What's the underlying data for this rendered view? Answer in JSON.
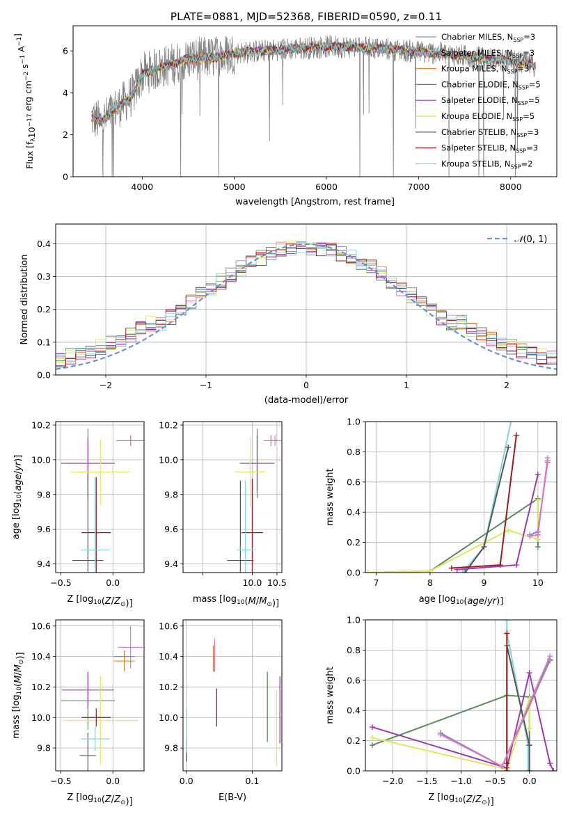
{
  "figure_title": "PLATE=0881, MJD=52368, FIBERID=0590, z=0.11",
  "series_colors": {
    "Chabrier MILES": "#6a8fd8",
    "Salpeter MILES": "#e377c2",
    "Kroupa MILES": "#e3832f",
    "Chabrier ELODIE": "#5b8a5b",
    "Salpeter ELODIE": "#9c37b5",
    "Kroupa ELODIE": "#d7ea5a",
    "Chabrier STELIB": "#555555",
    "Salpeter STELIB": "#a01818",
    "Kroupa STELIB": "#7fd6d6"
  },
  "chart_data": [
    {
      "type": "line",
      "title": "PLATE=0881, MJD=52368, FIBERID=0590, z=0.11",
      "xlabel": "wavelength [Angstrom, rest frame]",
      "ylabel": "Flux [f_λ10^-17 erg cm^-2 s^-1 A^-1]",
      "xlim": [
        3250,
        8500
      ],
      "ylim": [
        0,
        7.2
      ],
      "xticks": [
        4000,
        5000,
        6000,
        7000,
        8000
      ],
      "yticks": [
        0,
        2,
        4,
        6
      ],
      "grid": false,
      "legend": "top-right",
      "data_color": "#808080",
      "spectrum_anchor_x": [
        3450,
        3550,
        3700,
        3900,
        4000,
        4200,
        4500,
        4800,
        5000,
        5300,
        5600,
        6000,
        6300,
        6600,
        6900,
        7200,
        7500,
        7800,
        8000,
        8270
      ],
      "spectrum_anchor_y": [
        2.8,
        2.6,
        3.2,
        3.9,
        4.9,
        5.2,
        5.6,
        5.7,
        5.9,
        6.0,
        6.1,
        6.2,
        6.2,
        6.1,
        6.0,
        5.9,
        5.75,
        5.6,
        5.5,
        5.3
      ],
      "series": [
        {
          "name": "Chabrier MILES, N_SSP=3",
          "label_main": "Chabrier MILES, N",
          "label_sub": "SSP",
          "label_tail": "=3"
        },
        {
          "name": "Salpeter MILES, N_SSP=3",
          "label_main": "Salpeter MILES, N",
          "label_sub": "SSP",
          "label_tail": "=3"
        },
        {
          "name": "Kroupa MILES, N_SSP=3",
          "label_main": "Kroupa MILES, N",
          "label_sub": "SSP",
          "label_tail": "=3"
        },
        {
          "name": "Chabrier ELODIE, N_SSP=5",
          "label_main": "Chabrier ELODIE, N",
          "label_sub": "SSP",
          "label_tail": "=5"
        },
        {
          "name": "Salpeter ELODIE, N_SSP=5",
          "label_main": "Salpeter ELODIE, N",
          "label_sub": "SSP",
          "label_tail": "=5"
        },
        {
          "name": "Kroupa ELODIE, N_SSP=5",
          "label_main": "Kroupa ELODIE, N",
          "label_sub": "SSP",
          "label_tail": "=5"
        },
        {
          "name": "Chabrier STELIB, N_SSP=3",
          "label_main": "Chabrier STELIB, N",
          "label_sub": "SSP",
          "label_tail": "=3"
        },
        {
          "name": "Salpeter STELIB, N_SSP=3",
          "label_main": "Salpeter STELIB, N",
          "label_sub": "SSP",
          "label_tail": "=3"
        },
        {
          "name": "Kroupa STELIB, N_SSP=2",
          "label_main": "Kroupa STELIB, N",
          "label_sub": "SSP",
          "label_tail": "=2"
        }
      ]
    },
    {
      "type": "line",
      "xlabel": "(data-model)/error",
      "ylabel": "Normed distribution",
      "xlim": [
        -2.5,
        2.5
      ],
      "ylim": [
        0,
        0.46
      ],
      "xticks": [
        -2,
        -1,
        0,
        1,
        2
      ],
      "xtick_labels": [
        "−2",
        "−1",
        "0",
        "1",
        "2"
      ],
      "yticks": [
        0,
        0.1,
        0.2,
        0.3,
        0.4
      ],
      "ytick_labels": [
        "0.0",
        "0.1",
        "0.2",
        "0.3",
        "0.4"
      ],
      "grid": true,
      "legend": "top-right",
      "reference_curve": {
        "name": "N(0,1)",
        "mean": 0,
        "sigma": 1,
        "style": "dashed",
        "color": "#6a8fd8"
      },
      "hist_bin_width": 0.1,
      "hist_range": [
        -2.5,
        2.5
      ]
    },
    {
      "type": "scatter",
      "xlabel": "Z [log10(Z/Z⊙)]",
      "ylabel": "age [log10(age/yr)]",
      "xlim": [
        -0.55,
        0.3
      ],
      "ylim": [
        9.35,
        10.22
      ],
      "xticks": [
        -0.5,
        0.0
      ],
      "xtick_labels": [
        "−0.5",
        "0.0"
      ],
      "yticks": [
        9.4,
        9.6,
        9.8,
        10.0,
        10.2
      ],
      "ytick_labels": [
        "9.4",
        "9.6",
        "9.8",
        "10.0",
        "10.2"
      ],
      "grid": true,
      "errorbars": [
        {
          "series": "Chabrier MILES",
          "x": 0.17,
          "xerr": 0.13,
          "y": 10.11,
          "yerr": 0.02
        },
        {
          "series": "Salpeter MILES",
          "x": 0.17,
          "xerr": 0.14,
          "y": 10.11,
          "yerr": 0.03
        },
        {
          "series": "Kroupa MILES",
          "x": 0.17,
          "xerr": 0.13,
          "y": 10.11,
          "yerr": 0.03
        },
        {
          "series": "Chabrier ELODIE",
          "x": -0.24,
          "xerr": 0.24,
          "y": 9.98,
          "yerr": 0.2
        },
        {
          "series": "Salpeter ELODIE",
          "x": -0.24,
          "xerr": 0.26,
          "y": 9.98,
          "yerr": 0.15
        },
        {
          "series": "Kroupa ELODIE",
          "x": -0.12,
          "xerr": 0.28,
          "y": 9.93,
          "yerr": 0.19
        },
        {
          "series": "Chabrier STELIB",
          "x": -0.24,
          "xerr": 0.15,
          "y": 9.42,
          "yerr": 0.49
        },
        {
          "series": "Salpeter STELIB",
          "x": -0.16,
          "xerr": 0.14,
          "y": 9.58,
          "yerr": 0.32
        },
        {
          "series": "Kroupa STELIB",
          "x": -0.17,
          "xerr": 0.14,
          "y": 9.48,
          "yerr": 0.42
        }
      ]
    },
    {
      "type": "scatter",
      "xlabel": "mass [log10(M/M⊙)]",
      "ylabel": "",
      "xlim": [
        8.6,
        10.6
      ],
      "ylim": [
        9.35,
        10.22
      ],
      "xticks": [
        9.0,
        10.0,
        10.5
      ],
      "xtick_labels": [
        "",
        "10.0",
        "10.5"
      ],
      "yticks": [
        9.4,
        9.6,
        9.8,
        10.0,
        10.2
      ],
      "ytick_labels": [
        "9.4",
        "9.6",
        "9.8",
        "10.0",
        "10.2"
      ],
      "grid": true,
      "errorbars": [
        {
          "series": "Chabrier MILES",
          "x": 10.38,
          "xerr": 0.15,
          "y": 10.11,
          "yerr": 0.03
        },
        {
          "series": "Salpeter MILES",
          "x": 10.46,
          "xerr": 0.15,
          "y": 10.11,
          "yerr": 0.03
        },
        {
          "series": "Kroupa MILES",
          "x": 10.38,
          "xerr": 0.14,
          "y": 10.11,
          "yerr": 0.03
        },
        {
          "series": "Chabrier ELODIE",
          "x": 10.1,
          "xerr": 0.35,
          "y": 9.98,
          "yerr": 0.2
        },
        {
          "series": "Salpeter ELODIE",
          "x": 10.1,
          "xerr": 0.35,
          "y": 9.98,
          "yerr": 0.16
        },
        {
          "series": "Kroupa ELODIE",
          "x": 9.96,
          "xerr": 0.3,
          "y": 9.93,
          "yerr": 0.2
        },
        {
          "series": "Chabrier STELIB",
          "x": 9.76,
          "xerr": 0.27,
          "y": 9.42,
          "yerr": 0.46
        },
        {
          "series": "Salpeter STELIB",
          "x": 10.0,
          "xerr": 0.22,
          "y": 9.58,
          "yerr": 0.31
        },
        {
          "series": "Kroupa STELIB",
          "x": 9.86,
          "xerr": 0.18,
          "y": 9.48,
          "yerr": 0.4
        }
      ]
    },
    {
      "type": "line",
      "xlabel": "age [log10(age/yr)]",
      "ylabel": "mass weight",
      "xlim": [
        6.8,
        10.35
      ],
      "ylim": [
        0,
        1.0
      ],
      "xticks": [
        7,
        8,
        9,
        10
      ],
      "xtick_labels": [
        "7",
        "8",
        "9",
        "10"
      ],
      "yticks": [
        0,
        0.2,
        0.4,
        0.6,
        0.8,
        1.0
      ],
      "ytick_labels": [
        "0.0",
        "0.2",
        "0.4",
        "0.6",
        "0.8",
        "1.0"
      ],
      "grid": true,
      "series": [
        {
          "name": "Chabrier ELODIE",
          "x": [
            6.85,
            8.0,
            10.0,
            10.0
          ],
          "y": [
            0.0,
            0.01,
            0.49,
            0.17
          ]
        },
        {
          "name": "Kroupa ELODIE",
          "x": [
            6.85,
            8.0,
            9.45,
            10.0,
            10.0
          ],
          "y": [
            0.0,
            0.01,
            0.28,
            0.22,
            0.48
          ]
        },
        {
          "name": "Kroupa STELIB",
          "x": [
            8.6,
            9.0,
            9.5
          ],
          "y": [
            0.0,
            0.17,
            1.0
          ]
        },
        {
          "name": "Chabrier STELIB",
          "x": [
            8.65,
            9.0,
            9.45
          ],
          "y": [
            0.0,
            0.17,
            0.83
          ]
        },
        {
          "name": "Salpeter STELIB",
          "x": [
            8.4,
            9.3,
            9.6
          ],
          "y": [
            0.03,
            0.05,
            0.91
          ]
        },
        {
          "name": "Salpeter ELODIE",
          "x": [
            8.5,
            9.6,
            10.0
          ],
          "y": [
            0.02,
            0.05,
            0.65
          ]
        },
        {
          "name": "Kroupa MILES",
          "x": [
            9.85,
            10.0,
            10.18
          ],
          "y": [
            0.25,
            0.27,
            0.73
          ]
        },
        {
          "name": "Chabrier MILES",
          "x": [
            9.85,
            10.0,
            10.18
          ],
          "y": [
            0.25,
            0.27,
            0.74
          ]
        },
        {
          "name": "Salpeter MILES",
          "x": [
            9.85,
            10.0,
            10.18
          ],
          "y": [
            0.24,
            0.25,
            0.76
          ]
        }
      ]
    },
    {
      "type": "scatter",
      "xlabel": "Z [log10(Z/Z⊙)]",
      "ylabel": "mass [log10(M/M⊙)]",
      "xlim": [
        -0.55,
        0.3
      ],
      "ylim": [
        9.65,
        10.64
      ],
      "xticks": [
        -0.5,
        0.0
      ],
      "xtick_labels": [
        "−0.5",
        "0.0"
      ],
      "yticks": [
        9.8,
        10.0,
        10.2,
        10.4,
        10.6
      ],
      "ytick_labels": [
        "9.8",
        "10.0",
        "10.2",
        "10.4",
        "10.6"
      ],
      "grid": true,
      "errorbars": [
        {
          "series": "Chabrier MILES",
          "x": 0.11,
          "xerr": 0.1,
          "y": 10.4,
          "yerr": 0.04
        },
        {
          "series": "Salpeter MILES",
          "x": 0.17,
          "xerr": 0.12,
          "y": 10.46,
          "yerr": 0.14
        },
        {
          "series": "Kroupa MILES",
          "x": 0.11,
          "xerr": 0.1,
          "y": 10.37,
          "yerr": 0.07
        },
        {
          "series": "Chabrier ELODIE",
          "x": -0.24,
          "xerr": 0.26,
          "y": 10.11,
          "yerr": 0.19
        },
        {
          "series": "Salpeter ELODIE",
          "x": -0.24,
          "xerr": 0.25,
          "y": 10.18,
          "yerr": 0.12
        },
        {
          "series": "Kroupa ELODIE",
          "x": -0.12,
          "xerr": 0.36,
          "y": 9.98,
          "yerr": 0.29
        },
        {
          "series": "Chabrier STELIB",
          "x": -0.24,
          "xerr": 0.08,
          "y": 9.75,
          "yerr": 0.15
        },
        {
          "series": "Salpeter STELIB",
          "x": -0.16,
          "xerr": 0.14,
          "y": 10.0,
          "yerr": 0.06
        },
        {
          "series": "Kroupa STELIB",
          "x": -0.17,
          "xerr": 0.14,
          "y": 9.86,
          "yerr": 0.08
        }
      ]
    },
    {
      "type": "scatter",
      "xlabel": "E(B-V)",
      "ylabel": "",
      "xlim": [
        -0.005,
        0.145
      ],
      "ylim": [
        9.65,
        10.64
      ],
      "xticks": [
        0.0,
        0.1
      ],
      "xtick_labels": [
        "0.0",
        "0.1"
      ],
      "yticks": [
        9.8,
        10.0,
        10.2,
        10.4,
        10.6
      ],
      "ytick_labels": [
        "9.8",
        "10.0",
        "10.2",
        "10.4",
        "10.6"
      ],
      "grid": true,
      "vbars": [
        {
          "series": "Chabrier MILES",
          "x": 0.043,
          "y0": 10.3,
          "y1": 10.49
        },
        {
          "series": "Salpeter MILES",
          "x": 0.043,
          "y0": 10.32,
          "y1": 10.52
        },
        {
          "series": "Kroupa MILES",
          "x": 0.041,
          "y0": 10.3,
          "y1": 10.47
        },
        {
          "series": "Chabrier ELODIE",
          "x": 0.123,
          "y0": 9.84,
          "y1": 10.3
        },
        {
          "series": "Salpeter ELODIE",
          "x": 0.142,
          "y0": 9.83,
          "y1": 10.27
        },
        {
          "series": "Kroupa ELODIE",
          "x": 0.137,
          "y0": 9.68,
          "y1": 10.18
        },
        {
          "series": "Chabrier STELIB",
          "x": 0.0,
          "y0": 9.71,
          "y1": 9.86
        },
        {
          "series": "Salpeter STELIB",
          "x": 0.046,
          "y0": 9.94,
          "y1": 10.19
        },
        {
          "series": "Kroupa STELIB",
          "x": 0.0,
          "y0": 9.77,
          "y1": 10.06
        }
      ]
    },
    {
      "type": "line",
      "xlabel": "Z [log10(Z/Z⊙)]",
      "ylabel": "mass weight",
      "xlim": [
        -2.4,
        0.4
      ],
      "ylim": [
        0,
        1.0
      ],
      "xticks": [
        -2.0,
        -1.5,
        -1.0,
        -0.5,
        0.0
      ],
      "xtick_labels": [
        "−2.0",
        "−1.5",
        "−1.0",
        "−0.5",
        "0.0"
      ],
      "yticks": [
        0,
        0.2,
        0.4,
        0.6,
        0.8,
        1.0
      ],
      "ytick_labels": [
        "0.0",
        "0.2",
        "0.4",
        "0.6",
        "0.8",
        "1.0"
      ],
      "grid": true,
      "series": [
        {
          "name": "Chabrier ELODIE",
          "x": [
            -2.3,
            -0.33,
            0.0,
            0.0
          ],
          "y": [
            0.17,
            0.5,
            0.49,
            0.17
          ]
        },
        {
          "name": "Kroupa ELODIE",
          "x": [
            -2.3,
            -0.33,
            0.0,
            0.0
          ],
          "y": [
            0.22,
            0.01,
            0.48,
            0.28
          ]
        },
        {
          "name": "Salpeter ELODIE",
          "x": [
            -2.3,
            -0.33,
            0.0,
            0.3,
            0.35
          ],
          "y": [
            0.29,
            0.02,
            0.65,
            0.05,
            0.0
          ]
        },
        {
          "name": "Kroupa STELIB",
          "x": [
            -0.33,
            -0.33,
            -0.02,
            -0.02
          ],
          "y": [
            1.0,
            0.92,
            0.17,
            0.0
          ]
        },
        {
          "name": "Chabrier STELIB",
          "x": [
            -0.33,
            -0.33,
            0.0,
            0.0
          ],
          "y": [
            0.0,
            0.83,
            0.17,
            0.0
          ]
        },
        {
          "name": "Salpeter STELIB",
          "x": [
            -0.33,
            -0.33,
            -0.33
          ],
          "y": [
            0.0,
            0.91,
            0.05
          ]
        },
        {
          "name": "Kroupa MILES",
          "x": [
            -1.3,
            -0.4,
            0.3
          ],
          "y": [
            0.25,
            0.03,
            0.73
          ]
        },
        {
          "name": "Chabrier MILES",
          "x": [
            -1.3,
            -0.4,
            0.3
          ],
          "y": [
            0.25,
            0.03,
            0.74
          ]
        },
        {
          "name": "Salpeter MILES",
          "x": [
            -1.3,
            -0.4,
            0.3
          ],
          "y": [
            0.24,
            0.03,
            0.76
          ]
        }
      ]
    }
  ]
}
